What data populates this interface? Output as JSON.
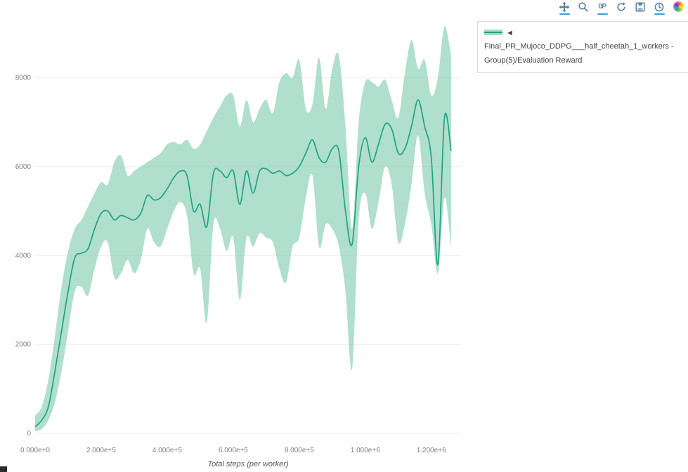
{
  "page": {
    "background": "#ffffff"
  },
  "toolbar": {
    "zero_p_label": "0P",
    "icons": [
      {
        "name": "pan",
        "active": true
      },
      {
        "name": "zoom",
        "active": false
      },
      {
        "name": "zero-p",
        "active": true
      },
      {
        "name": "refresh",
        "active": false
      },
      {
        "name": "save",
        "active": false
      },
      {
        "name": "clock",
        "active": true
      },
      {
        "name": "palette",
        "active": false
      }
    ],
    "icon_color": "#56809e",
    "active_underline_color": "#38a1d8"
  },
  "legend": {
    "label": "◄ Final_PR_Mujoco_DDPG___half_cheetah_1_workers - Group(5)/Evaluation Reward"
  },
  "chart_data": {
    "type": "line",
    "title": "",
    "xlabel": "Total steps (per worker)",
    "ylabel": "",
    "grid": "horizontal",
    "legend_position": "outside-top-right",
    "xlim": [
      0,
      1290000
    ],
    "ylim": [
      -140,
      9350
    ],
    "x_tick_values": [
      0,
      200000,
      400000,
      600000,
      800000,
      1000000,
      1200000
    ],
    "x_tick_labels": [
      "0.000e+0",
      "2.000e+5",
      "4.000e+5",
      "6.000e+5",
      "8.000e+5",
      "1.000e+6",
      "1.200e+6"
    ],
    "y_tick_values": [
      0,
      2000,
      4000,
      6000,
      8000
    ],
    "y_tick_labels": [
      "0",
      "2000",
      "4000",
      "6000",
      "8000"
    ],
    "colors": {
      "line": "#1fa385",
      "band": "#7fcbae",
      "grid": "#ececec",
      "tick_text": "#7f7f7f",
      "axis_title": "#555555"
    },
    "series": [
      {
        "name": "Final_PR_Mujoco_DDPG___half_cheetah_1_workers - Group(5)/Evaluation Reward",
        "x": [
          0,
          20000,
          40000,
          60000,
          80000,
          100000,
          120000,
          140000,
          160000,
          180000,
          200000,
          220000,
          240000,
          260000,
          280000,
          300000,
          320000,
          340000,
          360000,
          380000,
          400000,
          420000,
          440000,
          460000,
          480000,
          500000,
          520000,
          540000,
          560000,
          580000,
          600000,
          620000,
          640000,
          660000,
          680000,
          700000,
          720000,
          740000,
          760000,
          780000,
          800000,
          820000,
          840000,
          860000,
          880000,
          900000,
          920000,
          940000,
          960000,
          980000,
          1000000,
          1020000,
          1040000,
          1060000,
          1080000,
          1100000,
          1120000,
          1140000,
          1160000,
          1180000,
          1200000,
          1220000,
          1240000,
          1260000
        ],
        "mean": [
          150,
          300,
          600,
          1400,
          2300,
          3200,
          3950,
          4050,
          4150,
          4600,
          4950,
          5000,
          4800,
          4900,
          4850,
          4800,
          4950,
          5350,
          5250,
          5300,
          5500,
          5750,
          5900,
          5800,
          5000,
          5150,
          4650,
          5850,
          5900,
          5750,
          5900,
          5150,
          5900,
          5400,
          5900,
          5950,
          5850,
          5900,
          5800,
          5850,
          6000,
          6300,
          6600,
          6200,
          6100,
          6400,
          6350,
          5000,
          4250,
          6000,
          6650,
          6100,
          6500,
          6950,
          6850,
          6300,
          6400,
          6900,
          7500,
          6900,
          6200,
          3800,
          7100,
          6350
        ],
        "upper": [
          400,
          600,
          1200,
          2200,
          3300,
          4100,
          4600,
          4800,
          5100,
          5400,
          5650,
          5600,
          6100,
          6250,
          5800,
          5900,
          6000,
          6100,
          6200,
          6300,
          6500,
          6550,
          6500,
          6600,
          6400,
          6500,
          6800,
          7100,
          7350,
          7600,
          7600,
          6900,
          7500,
          7000,
          7300,
          7500,
          7200,
          7900,
          8100,
          8000,
          8400,
          7300,
          7400,
          8450,
          7300,
          8200,
          8500,
          6900,
          4600,
          7000,
          7900,
          7900,
          7800,
          7950,
          7500,
          7100,
          8100,
          8850,
          8200,
          8400,
          7600,
          8000,
          9150,
          8500
        ],
        "lower": [
          50,
          100,
          300,
          700,
          1400,
          2300,
          3200,
          3300,
          3100,
          3700,
          4200,
          4300,
          3500,
          3600,
          3900,
          3600,
          3900,
          4600,
          4300,
          4200,
          4600,
          5000,
          5200,
          4900,
          3600,
          3700,
          2500,
          4700,
          4600,
          4100,
          4400,
          3000,
          4400,
          4200,
          4500,
          4400,
          4300,
          3700,
          3400,
          4200,
          4400,
          5300,
          5800,
          4200,
          4700,
          4600,
          4200,
          3200,
          1450,
          4800,
          5400,
          4600,
          5200,
          6000,
          5600,
          4300,
          4700,
          5600,
          6700,
          5400,
          4700,
          3600,
          5300,
          4200
        ]
      }
    ]
  }
}
